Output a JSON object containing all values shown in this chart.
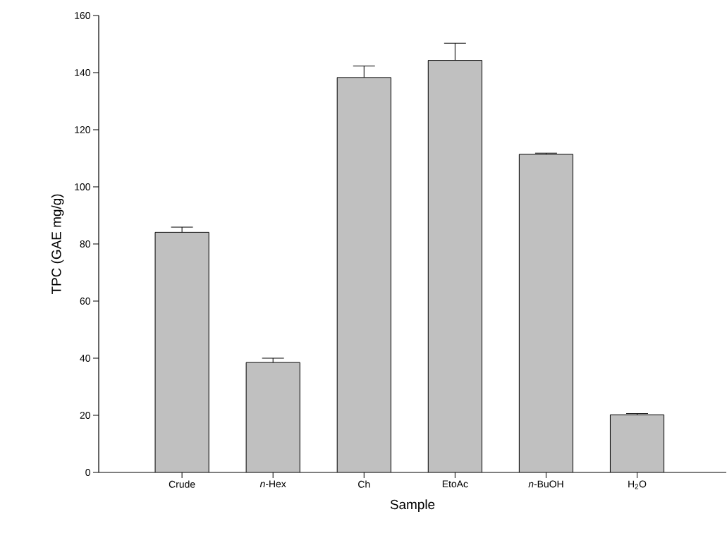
{
  "chart_data": {
    "type": "bar",
    "xlabel": "Sample",
    "ylabel": "TPC (GAE mg/g)",
    "categories": [
      "Crude",
      "*n*-Hex",
      "Ch",
      "EtoAc",
      "*n*-BuOH",
      "H$_{2}$O"
    ],
    "values": [
      84.1,
      38.5,
      138.3,
      144.3,
      111.4,
      20.2
    ],
    "errors": [
      [
        84.1,
        85.9
      ],
      [
        38.5,
        40
      ],
      [
        138.3,
        142.3
      ],
      [
        144.3,
        150.3
      ],
      [
        111.4,
        111.8
      ],
      [
        20.2,
        20.6
      ]
    ],
    "color": "#c0c0c0",
    "ylim": [
      0,
      160
    ],
    "yticks": [
      0,
      20,
      40,
      60,
      80,
      100,
      120,
      140,
      160
    ],
    "grid": false
  }
}
